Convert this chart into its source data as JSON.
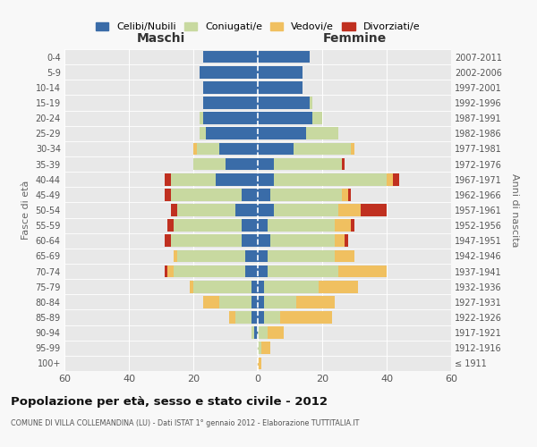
{
  "age_groups": [
    "100+",
    "95-99",
    "90-94",
    "85-89",
    "80-84",
    "75-79",
    "70-74",
    "65-69",
    "60-64",
    "55-59",
    "50-54",
    "45-49",
    "40-44",
    "35-39",
    "30-34",
    "25-29",
    "20-24",
    "15-19",
    "10-14",
    "5-9",
    "0-4"
  ],
  "birth_years": [
    "≤ 1911",
    "1912-1916",
    "1917-1921",
    "1922-1926",
    "1927-1931",
    "1932-1936",
    "1937-1941",
    "1942-1946",
    "1947-1951",
    "1952-1956",
    "1957-1961",
    "1962-1966",
    "1967-1971",
    "1972-1976",
    "1977-1981",
    "1982-1986",
    "1987-1991",
    "1992-1996",
    "1997-2001",
    "2002-2006",
    "2007-2011"
  ],
  "colors": {
    "celibe": "#3a6ca8",
    "coniugato": "#c8d9a0",
    "vedovo": "#f0c060",
    "divorziato": "#c03020"
  },
  "maschi": {
    "celibe": [
      0,
      0,
      1,
      2,
      2,
      2,
      4,
      4,
      5,
      5,
      7,
      5,
      13,
      10,
      12,
      16,
      17,
      17,
      17,
      18,
      17
    ],
    "coniugato": [
      0,
      0,
      1,
      5,
      10,
      18,
      22,
      21,
      22,
      21,
      18,
      22,
      14,
      10,
      7,
      2,
      1,
      0,
      0,
      0,
      0
    ],
    "vedovo": [
      0,
      0,
      0,
      2,
      5,
      1,
      2,
      1,
      0,
      0,
      0,
      0,
      0,
      0,
      1,
      0,
      0,
      0,
      0,
      0,
      0
    ],
    "divorziato": [
      0,
      0,
      0,
      0,
      0,
      0,
      1,
      0,
      2,
      2,
      2,
      2,
      2,
      0,
      0,
      0,
      0,
      0,
      0,
      0,
      0
    ]
  },
  "femmine": {
    "nubile": [
      0,
      0,
      0,
      2,
      2,
      2,
      3,
      3,
      4,
      3,
      5,
      4,
      5,
      5,
      11,
      15,
      17,
      16,
      14,
      14,
      16
    ],
    "coniugata": [
      0,
      1,
      3,
      5,
      10,
      17,
      22,
      21,
      20,
      21,
      20,
      22,
      35,
      21,
      18,
      10,
      3,
      1,
      0,
      0,
      0
    ],
    "vedova": [
      1,
      3,
      5,
      16,
      12,
      12,
      15,
      6,
      3,
      5,
      7,
      2,
      2,
      0,
      1,
      0,
      0,
      0,
      0,
      0,
      0
    ],
    "divorziata": [
      0,
      0,
      0,
      0,
      0,
      0,
      0,
      0,
      1,
      1,
      8,
      1,
      2,
      1,
      0,
      0,
      0,
      0,
      0,
      0,
      0
    ]
  },
  "xlim": 60,
  "title": "Popolazione per età, sesso e stato civile - 2012",
  "subtitle": "COMUNE DI VILLA COLLEMANDINA (LU) - Dati ISTAT 1° gennaio 2012 - Elaborazione TUTTITALIA.IT",
  "ylabel_left": "Fasce di età",
  "ylabel_right": "Anni di nascita",
  "xlabel_maschi": "Maschi",
  "xlabel_femmine": "Femmine",
  "legend_labels": [
    "Celibi/Nubili",
    "Coniugati/e",
    "Vedovi/e",
    "Divorziati/e"
  ],
  "fig_bg": "#f8f8f8",
  "plot_bg": "#e8e8e8"
}
